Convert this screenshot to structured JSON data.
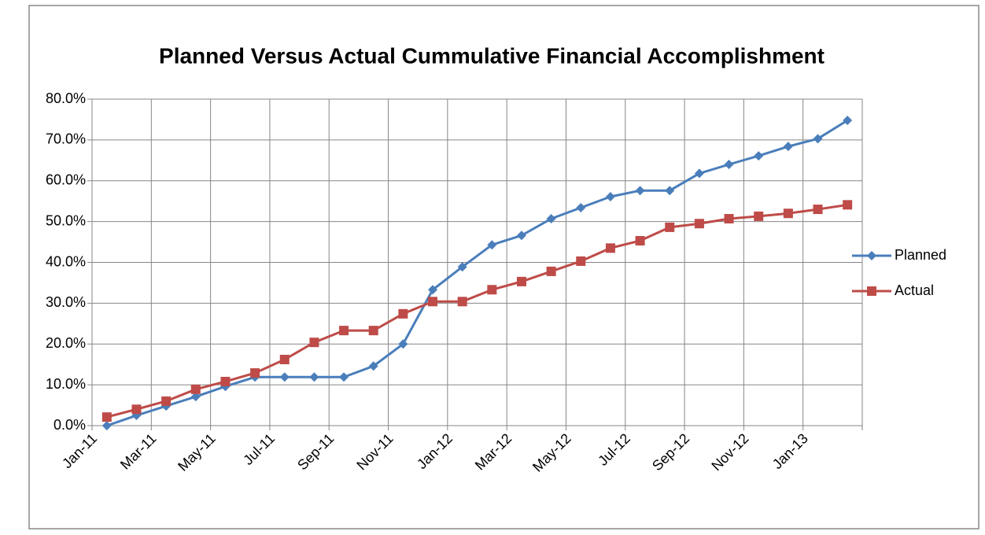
{
  "chart_data": {
    "type": "line",
    "title": "Planned Versus Actual Cummulative Financial Accomplishment",
    "categories": [
      "Jan-11",
      null,
      "Mar-11",
      null,
      "May-11",
      null,
      "Jul-11",
      null,
      "Sep-11",
      null,
      "Nov-11",
      null,
      "Jan-12",
      null,
      "Mar-12",
      null,
      "May-12",
      null,
      "Jul-12",
      null,
      "Sep-12",
      null,
      "Nov-12",
      null,
      "Jan-13",
      null
    ],
    "series": [
      {
        "name": "Planned",
        "color": "#4a7ebb",
        "marker": "diamond",
        "values": [
          0,
          2.5,
          4.8,
          7.1,
          9.6,
          11.9,
          11.9,
          11.9,
          11.9,
          14.6,
          20.0,
          33.3,
          38.9,
          44.3,
          46.6,
          50.7,
          53.4,
          56.1,
          57.6,
          57.6,
          61.8,
          64.0,
          66.1,
          68.4,
          70.3,
          74.8
        ]
      },
      {
        "name": "Actual",
        "color": "#be4b48",
        "marker": "square",
        "values": [
          2.1,
          4.0,
          6.0,
          8.9,
          10.8,
          12.9,
          16.2,
          20.4,
          23.3,
          23.3,
          27.4,
          30.4,
          30.4,
          33.3,
          35.3,
          37.8,
          40.3,
          43.5,
          45.3,
          48.6,
          49.5,
          50.7,
          51.3,
          52.0,
          53.0,
          54.1
        ]
      }
    ],
    "ylim": [
      0,
      80
    ],
    "yticks": [
      {
        "value": 0,
        "label": "0.0%"
      },
      {
        "value": 10,
        "label": "10.0%"
      },
      {
        "value": 20,
        "label": "20.0%"
      },
      {
        "value": 30,
        "label": "30.0%"
      },
      {
        "value": 40,
        "label": "40.0%"
      },
      {
        "value": 50,
        "label": "50.0%"
      },
      {
        "value": 60,
        "label": "60.0%"
      },
      {
        "value": 70,
        "label": "70.0%"
      },
      {
        "value": 80,
        "label": "80.0%"
      }
    ],
    "grid": true,
    "legend": "right"
  }
}
